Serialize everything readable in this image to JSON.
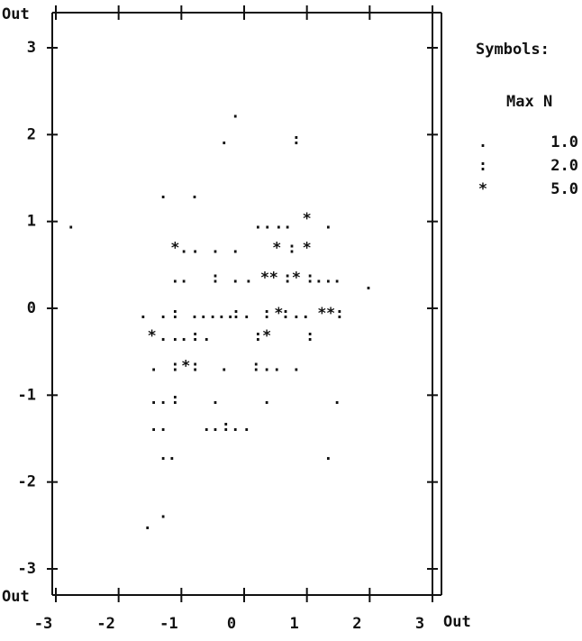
{
  "chart_data": {
    "type": "scatter",
    "out_label": "Out",
    "xlim": [
      -3,
      3
    ],
    "xticks": [
      -3,
      -2,
      -1,
      0,
      1,
      2,
      3
    ],
    "ylim": [
      -3,
      3
    ],
    "yticks": [
      3,
      2,
      1,
      0,
      -1,
      -2,
      -3
    ],
    "legend": {
      "title": "Symbols:",
      "header": "Max N"
    },
    "series": [
      {
        "name": ".",
        "max_n": {
          "value": 1,
          "label": "1.0"
        },
        "color": "#111",
        "x": [
          -0.14,
          -0.32,
          -1.29,
          -0.79,
          -2.76,
          0.22,
          0.37,
          0.55,
          0.69,
          1.34,
          -0.96,
          -0.78,
          -0.46,
          -0.14,
          -1.1,
          -0.96,
          -0.14,
          0.07,
          1.19,
          1.34,
          1.48,
          1.98,
          -1.61,
          -1.29,
          -0.79,
          -0.65,
          -0.5,
          -0.36,
          -0.22,
          0.04,
          0.83,
          0.98,
          -1.29,
          -1.1,
          -0.96,
          -0.6,
          -1.44,
          -0.32,
          0.36,
          0.52,
          0.83,
          -1.44,
          -1.29,
          -0.46,
          0.36,
          1.48,
          -1.44,
          -1.29,
          -0.6,
          -0.46,
          -0.14,
          0.04,
          -1.29,
          -1.15,
          1.34,
          -1.29,
          -1.54
        ],
        "values": [
          2.25,
          1.94,
          1.32,
          1.32,
          0.97,
          0.97,
          0.97,
          0.97,
          0.97,
          0.97,
          0.69,
          0.69,
          0.69,
          0.69,
          0.35,
          0.35,
          0.35,
          0.35,
          0.35,
          0.35,
          0.35,
          0.27,
          -0.06,
          -0.06,
          -0.06,
          -0.06,
          -0.06,
          -0.06,
          -0.06,
          -0.06,
          -0.06,
          -0.06,
          -0.32,
          -0.32,
          -0.32,
          -0.32,
          -0.67,
          -0.67,
          -0.67,
          -0.67,
          -0.67,
          -1.05,
          -1.05,
          -1.05,
          -1.05,
          -1.05,
          -1.36,
          -1.36,
          -1.36,
          -1.36,
          -1.36,
          -1.36,
          -1.69,
          -1.69,
          -1.69,
          -2.36,
          -2.49
        ]
      },
      {
        "name": ":",
        "max_n": {
          "value": 2,
          "label": "2.0"
        },
        "color": "#111",
        "x": [
          0.83,
          0.76,
          -0.46,
          0.69,
          1.05,
          -1.1,
          -0.13,
          0.36,
          0.66,
          1.52,
          -0.78,
          0.22,
          1.05,
          -1.1,
          -0.78,
          0.19,
          -1.1,
          -0.29
        ],
        "values": [
          1.94,
          0.69,
          0.35,
          0.35,
          0.35,
          -0.06,
          -0.06,
          -0.06,
          -0.06,
          -0.06,
          -0.32,
          -0.32,
          -0.32,
          -0.67,
          -0.67,
          -0.67,
          -1.05,
          -1.36
        ]
      },
      {
        "name": "*",
        "max_n": {
          "value": 5,
          "label": "5.0"
        },
        "color": "#111",
        "x": [
          1.0,
          -1.1,
          0.52,
          1.0,
          0.33,
          0.47,
          0.83,
          0.55,
          1.24,
          1.38,
          -1.47,
          0.36,
          -0.93
        ],
        "values": [
          1.03,
          0.69,
          0.69,
          0.69,
          0.35,
          0.35,
          0.35,
          -0.06,
          -0.06,
          -0.06,
          -0.32,
          -0.32,
          -0.67
        ]
      }
    ]
  }
}
